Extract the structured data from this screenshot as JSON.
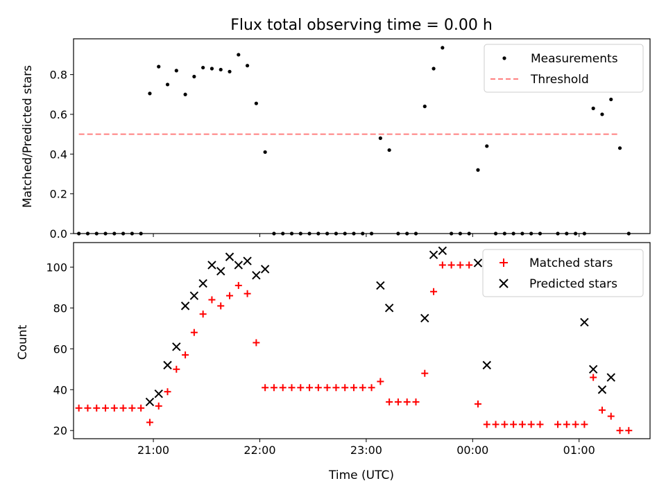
{
  "chart_data": [
    {
      "type": "scatter",
      "title": "Flux total observing time = 0.00 h",
      "xlabel": "",
      "ylabel": "Matched/Predicted stars",
      "ylim": [
        0,
        0.98
      ],
      "xlim": [
        "20:15",
        "01:40"
      ],
      "yticks": [
        "0.0",
        "0.2",
        "0.4",
        "0.6",
        "0.8"
      ],
      "legend_position": "top-right",
      "series": [
        {
          "name": "Measurements",
          "marker": "dot",
          "color": "#000000",
          "x": [
            "20:18",
            "20:23",
            "20:28",
            "20:33",
            "20:38",
            "20:43",
            "20:48",
            "20:53",
            "20:58",
            "21:03",
            "21:08",
            "21:13",
            "21:18",
            "21:23",
            "21:28",
            "21:33",
            "21:38",
            "21:43",
            "21:48",
            "21:53",
            "21:58",
            "22:03",
            "22:08",
            "22:13",
            "22:18",
            "22:23",
            "22:28",
            "22:33",
            "22:38",
            "22:43",
            "22:48",
            "22:53",
            "22:58",
            "23:03",
            "23:08",
            "23:13",
            "23:18",
            "23:23",
            "23:28",
            "23:33",
            "23:38",
            "23:43",
            "23:48",
            "23:53",
            "23:58",
            "00:03",
            "00:08",
            "00:13",
            "00:18",
            "00:23",
            "00:28",
            "00:33",
            "00:38",
            "00:48",
            "00:53",
            "00:58",
            "01:03",
            "01:08",
            "01:13",
            "01:18",
            "01:23",
            "01:28"
          ],
          "values": [
            0,
            0,
            0,
            0,
            0,
            0,
            0,
            0,
            0.705,
            0.84,
            0.75,
            0.82,
            0.7,
            0.79,
            0.835,
            0.83,
            0.825,
            0.815,
            0.9,
            0.845,
            0.655,
            0.41,
            0,
            0,
            0,
            0,
            0,
            0,
            0,
            0,
            0,
            0,
            0,
            0,
            0.48,
            0.42,
            0,
            0,
            0,
            0.64,
            0.83,
            0.935,
            0,
            0,
            0,
            0.32,
            0.44,
            0,
            0,
            0,
            0,
            0,
            0,
            0,
            0,
            0,
            0,
            0.63,
            0.6,
            0.675,
            0.43,
            0
          ]
        },
        {
          "name": "Threshold",
          "style": "dashed",
          "color": "#ff8080",
          "x": [
            "20:18",
            "01:23"
          ],
          "values": [
            0.5,
            0.5
          ]
        }
      ]
    },
    {
      "type": "scatter",
      "title": "",
      "xlabel": "Time (UTC)",
      "ylabel": "Count",
      "ylim": [
        16,
        112
      ],
      "xlim": [
        "20:15",
        "01:40"
      ],
      "yticks": [
        "20",
        "40",
        "60",
        "80",
        "100"
      ],
      "xticks": [
        "21:00",
        "22:00",
        "23:00",
        "00:00",
        "01:00"
      ],
      "legend_position": "top-right",
      "series": [
        {
          "name": "Matched stars",
          "marker": "plus",
          "color": "#ff0000",
          "x": [
            "20:18",
            "20:23",
            "20:28",
            "20:33",
            "20:38",
            "20:43",
            "20:48",
            "20:53",
            "20:58",
            "21:03",
            "21:08",
            "21:13",
            "21:18",
            "21:23",
            "21:28",
            "21:33",
            "21:38",
            "21:43",
            "21:48",
            "21:53",
            "21:58",
            "22:03",
            "22:08",
            "22:13",
            "22:18",
            "22:23",
            "22:28",
            "22:33",
            "22:38",
            "22:43",
            "22:48",
            "22:53",
            "22:58",
            "23:03",
            "23:08",
            "23:13",
            "23:18",
            "23:23",
            "23:28",
            "23:33",
            "23:38",
            "23:43",
            "23:48",
            "23:53",
            "23:58",
            "00:03",
            "00:08",
            "00:13",
            "00:18",
            "00:23",
            "00:28",
            "00:33",
            "00:38",
            "00:48",
            "00:53",
            "00:58",
            "01:03",
            "01:08",
            "01:13",
            "01:18",
            "01:23",
            "01:28"
          ],
          "values": [
            31,
            31,
            31,
            31,
            31,
            31,
            31,
            31,
            24,
            32,
            39,
            50,
            57,
            68,
            77,
            84,
            81,
            86,
            91,
            87,
            63,
            41,
            41,
            41,
            41,
            41,
            41,
            41,
            41,
            41,
            41,
            41,
            41,
            41,
            44,
            34,
            34,
            34,
            34,
            48,
            88,
            101,
            101,
            101,
            101,
            33,
            23,
            23,
            23,
            23,
            23,
            23,
            23,
            23,
            23,
            23,
            23,
            46,
            30,
            27,
            20,
            20
          ]
        },
        {
          "name": "Predicted stars",
          "marker": "x",
          "color": "#000000",
          "x": [
            "20:58",
            "21:03",
            "21:08",
            "21:13",
            "21:18",
            "21:23",
            "21:28",
            "21:33",
            "21:38",
            "21:43",
            "21:48",
            "21:53",
            "21:58",
            "22:03",
            "23:08",
            "23:13",
            "23:33",
            "23:38",
            "23:43",
            "00:03",
            "00:08",
            "01:03",
            "01:08",
            "01:13",
            "01:18"
          ],
          "values": [
            34,
            38,
            52,
            61,
            81,
            86,
            92,
            101,
            98,
            105,
            101,
            103,
            96,
            99,
            91,
            80,
            75,
            106,
            108,
            102,
            52,
            73,
            50,
            40,
            46
          ]
        }
      ]
    }
  ]
}
